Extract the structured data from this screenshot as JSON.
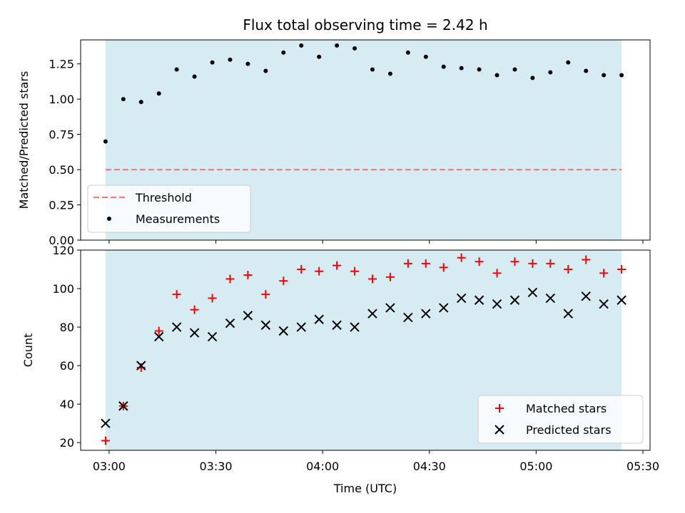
{
  "figure_title": "Flux total observing time = 2.42 h",
  "colors": {
    "shade": "#add8e6",
    "threshold": "#f08080",
    "matched": "#ff0000",
    "predicted": "#000000",
    "measurement": "#000000"
  },
  "chart_data": [
    {
      "type": "scatter",
      "title": "Flux total observing time = 2.42 h",
      "xlabel": "",
      "ylabel": "Matched/Predicted stars",
      "xlim": [
        "02:52",
        "05:32"
      ],
      "ylim": [
        0,
        1.42
      ],
      "yticks": [
        0.0,
        0.25,
        0.5,
        0.75,
        1.0,
        1.25
      ],
      "ytick_labels": [
        "0.00",
        "0.25",
        "0.50",
        "0.75",
        "1.00",
        "1.25"
      ],
      "shaded_span": [
        "02:59",
        "05:24"
      ],
      "threshold": 0.5,
      "legend_position": "lower-left",
      "legend": [
        "Threshold",
        "Measurements"
      ],
      "x": [
        "02:59",
        "03:04",
        "03:09",
        "03:14",
        "03:19",
        "03:24",
        "03:29",
        "03:34",
        "03:39",
        "03:44",
        "03:49",
        "03:54",
        "03:59",
        "04:04",
        "04:09",
        "04:14",
        "04:19",
        "04:24",
        "04:29",
        "04:34",
        "04:39",
        "04:44",
        "04:49",
        "04:54",
        "04:59",
        "05:04",
        "05:09",
        "05:14",
        "05:19",
        "05:24"
      ],
      "series": [
        {
          "name": "Measurements",
          "values": [
            0.7,
            1.0,
            0.98,
            1.04,
            1.21,
            1.16,
            1.26,
            1.28,
            1.25,
            1.2,
            1.33,
            1.38,
            1.3,
            1.38,
            1.36,
            1.21,
            1.18,
            1.33,
            1.3,
            1.23,
            1.22,
            1.21,
            1.17,
            1.21,
            1.15,
            1.19,
            1.26,
            1.2,
            1.17,
            1.17
          ]
        }
      ]
    },
    {
      "type": "scatter",
      "title": "",
      "xlabel": "Time (UTC)",
      "ylabel": "Count",
      "xlim": [
        "02:52",
        "05:32"
      ],
      "ylim": [
        16,
        120
      ],
      "xticks": [
        "03:00",
        "03:30",
        "04:00",
        "04:30",
        "05:00",
        "05:30"
      ],
      "yticks": [
        20,
        40,
        60,
        80,
        100,
        120
      ],
      "shaded_span": [
        "02:59",
        "05:24"
      ],
      "legend_position": "lower-right",
      "legend": [
        "Matched stars",
        "Predicted stars"
      ],
      "x": [
        "02:59",
        "03:04",
        "03:09",
        "03:14",
        "03:19",
        "03:24",
        "03:29",
        "03:34",
        "03:39",
        "03:44",
        "03:49",
        "03:54",
        "03:59",
        "04:04",
        "04:09",
        "04:14",
        "04:19",
        "04:24",
        "04:29",
        "04:34",
        "04:39",
        "04:44",
        "04:49",
        "04:54",
        "04:59",
        "05:04",
        "05:09",
        "05:14",
        "05:19",
        "05:24"
      ],
      "series": [
        {
          "name": "Matched stars",
          "values": [
            21,
            39,
            59,
            78,
            97,
            89,
            95,
            105,
            107,
            97,
            104,
            110,
            109,
            112,
            109,
            105,
            106,
            113,
            113,
            111,
            116,
            114,
            108,
            114,
            113,
            113,
            110,
            115,
            108,
            110
          ]
        },
        {
          "name": "Predicted stars",
          "values": [
            30,
            39,
            60,
            75,
            80,
            77,
            75,
            82,
            86,
            81,
            78,
            80,
            84,
            81,
            80,
            87,
            90,
            85,
            87,
            90,
            95,
            94,
            92,
            94,
            98,
            95,
            87,
            96,
            92,
            94
          ]
        }
      ]
    }
  ]
}
